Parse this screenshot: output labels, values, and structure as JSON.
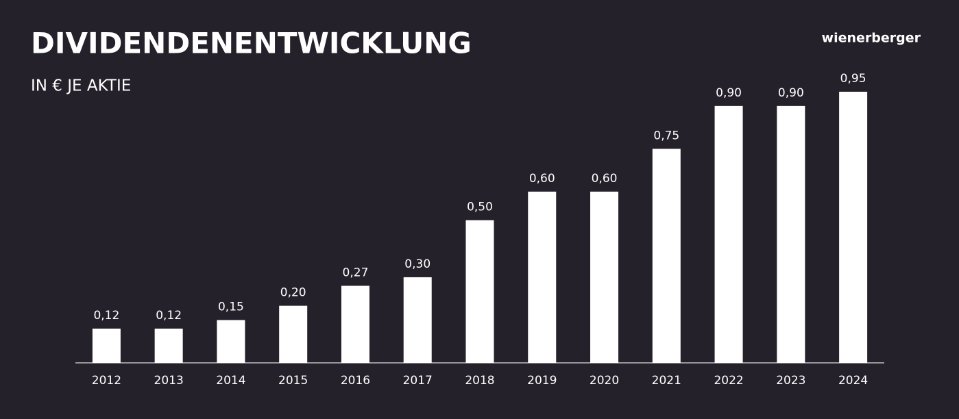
{
  "chart_data": {
    "type": "bar",
    "title": "DIVIDENDENENTWICKLUNG",
    "subtitle": "IN € JE AKTIE",
    "brand": "wienerberger",
    "categories": [
      "2012",
      "2013",
      "2014",
      "2015",
      "2016",
      "2017",
      "2018",
      "2019",
      "2020",
      "2021",
      "2022",
      "2023",
      "2024"
    ],
    "values": [
      0.12,
      0.12,
      0.15,
      0.2,
      0.27,
      0.3,
      0.5,
      0.6,
      0.6,
      0.75,
      0.9,
      0.9,
      0.95
    ],
    "value_labels": [
      "0,12",
      "0,12",
      "0,15",
      "0,20",
      "0,27",
      "0,30",
      "0,50",
      "0,60",
      "0,60",
      "0,75",
      "0,90",
      "0,90",
      "0,95"
    ],
    "color": "#ffffff"
  }
}
